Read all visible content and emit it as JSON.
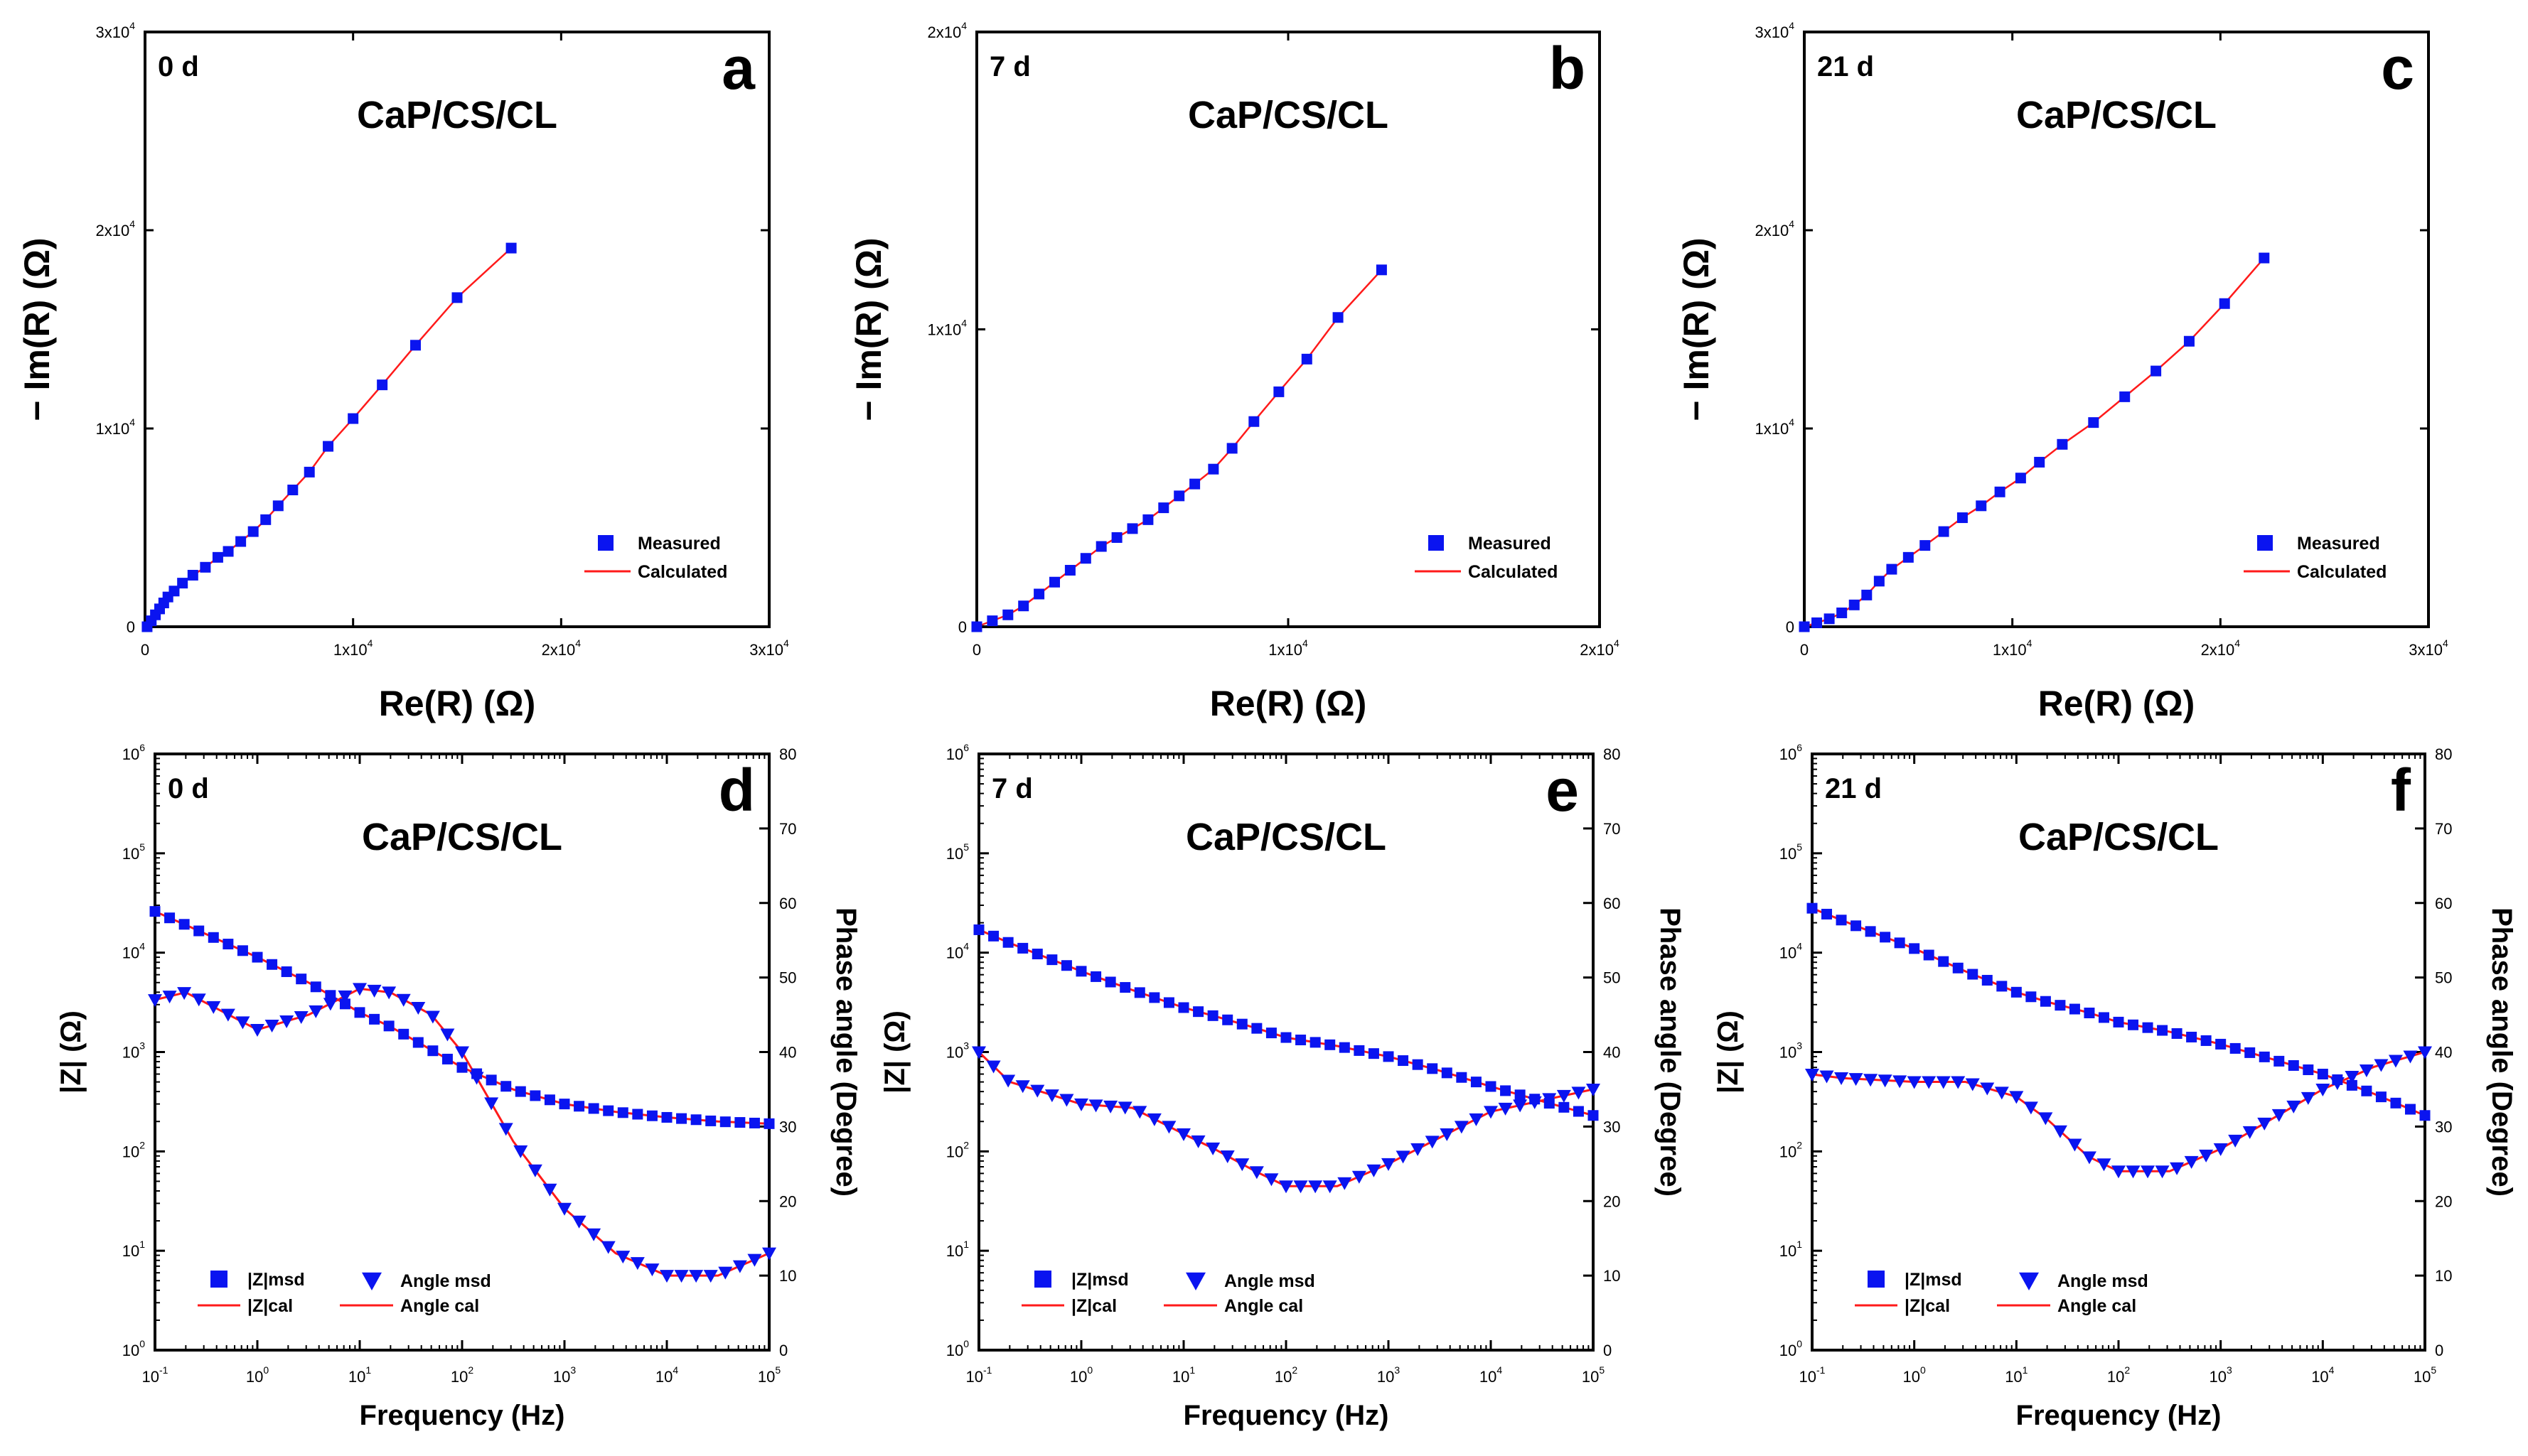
{
  "colors": {
    "measured": "#0a14f0",
    "calculated": "#ff1a1a",
    "axis": "#000000"
  },
  "chart_data": [
    {
      "id": "a",
      "type": "scatter",
      "panel_letter": "a",
      "day": "0 d",
      "title": "CaP/CS/CL",
      "xlabel": "Re(R) (Ω)",
      "ylabel": "− Im(R) (Ω)",
      "xlim": [
        0,
        30000
      ],
      "ylim": [
        0,
        30000
      ],
      "xticks": [
        {
          "v": 0,
          "m": "0",
          "e": ""
        },
        {
          "v": 10000,
          "m": "1x10",
          "e": "4"
        },
        {
          "v": 20000,
          "m": "2x10",
          "e": "4"
        },
        {
          "v": 30000,
          "m": "3x10",
          "e": "4"
        }
      ],
      "yticks": [
        {
          "v": 0,
          "m": "0",
          "e": ""
        },
        {
          "v": 10000,
          "m": "1x10",
          "e": "4"
        },
        {
          "v": 20000,
          "m": "2x10",
          "e": "4"
        },
        {
          "v": 30000,
          "m": "3x10",
          "e": "4"
        }
      ],
      "legend": [
        "Measured",
        "Calculated"
      ],
      "legend_position": "bottom-right",
      "points": [
        [
          100,
          0
        ],
        [
          300,
          300
        ],
        [
          500,
          600
        ],
        [
          700,
          900
        ],
        [
          900,
          1200
        ],
        [
          1100,
          1500
        ],
        [
          1400,
          1800
        ],
        [
          1800,
          2200
        ],
        [
          2300,
          2600
        ],
        [
          2900,
          3000
        ],
        [
          3500,
          3500
        ],
        [
          4000,
          3800
        ],
        [
          4600,
          4300
        ],
        [
          5200,
          4800
        ],
        [
          5800,
          5400
        ],
        [
          6400,
          6100
        ],
        [
          7100,
          6900
        ],
        [
          7900,
          7800
        ],
        [
          8800,
          9100
        ],
        [
          10000,
          10500
        ],
        [
          11400,
          12200
        ],
        [
          13000,
          14200
        ],
        [
          15000,
          16600
        ],
        [
          17600,
          19100
        ]
      ]
    },
    {
      "id": "b",
      "type": "scatter",
      "panel_letter": "b",
      "day": "7 d",
      "title": "CaP/CS/CL",
      "xlabel": "Re(R) (Ω)",
      "ylabel": "− Im(R) (Ω)",
      "xlim": [
        0,
        20000
      ],
      "ylim": [
        0,
        20000
      ],
      "xticks": [
        {
          "v": 0,
          "m": "0",
          "e": ""
        },
        {
          "v": 10000,
          "m": "1x10",
          "e": "4"
        },
        {
          "v": 20000,
          "m": "2x10",
          "e": "4"
        }
      ],
      "yticks": [
        {
          "v": 0,
          "m": "0",
          "e": ""
        },
        {
          "v": 10000,
          "m": "1x10",
          "e": "4"
        },
        {
          "v": 20000,
          "m": "2x10",
          "e": "4"
        }
      ],
      "legend": [
        "Measured",
        "Calculated"
      ],
      "legend_position": "bottom-right",
      "points": [
        [
          0,
          0
        ],
        [
          500,
          200
        ],
        [
          1000,
          400
        ],
        [
          1500,
          700
        ],
        [
          2000,
          1100
        ],
        [
          2500,
          1500
        ],
        [
          3000,
          1900
        ],
        [
          3500,
          2300
        ],
        [
          4000,
          2700
        ],
        [
          4500,
          3000
        ],
        [
          5000,
          3300
        ],
        [
          5500,
          3600
        ],
        [
          6000,
          4000
        ],
        [
          6500,
          4400
        ],
        [
          7000,
          4800
        ],
        [
          7600,
          5300
        ],
        [
          8200,
          6000
        ],
        [
          8900,
          6900
        ],
        [
          9700,
          7900
        ],
        [
          10600,
          9000
        ],
        [
          11600,
          10400
        ],
        [
          13000,
          12000
        ]
      ]
    },
    {
      "id": "c",
      "type": "scatter",
      "panel_letter": "c",
      "day": "21 d",
      "title": "CaP/CS/CL",
      "xlabel": "Re(R) (Ω)",
      "ylabel": "− Im(R) (Ω)",
      "xlim": [
        0,
        30000
      ],
      "ylim": [
        0,
        30000
      ],
      "xticks": [
        {
          "v": 0,
          "m": "0",
          "e": ""
        },
        {
          "v": 10000,
          "m": "1x10",
          "e": "4"
        },
        {
          "v": 20000,
          "m": "2x10",
          "e": "4"
        },
        {
          "v": 30000,
          "m": "3x10",
          "e": "4"
        }
      ],
      "yticks": [
        {
          "v": 0,
          "m": "0",
          "e": ""
        },
        {
          "v": 10000,
          "m": "1x10",
          "e": "4"
        },
        {
          "v": 20000,
          "m": "2x10",
          "e": "4"
        },
        {
          "v": 30000,
          "m": "3x10",
          "e": "4"
        }
      ],
      "legend": [
        "Measured",
        "Calculated"
      ],
      "legend_position": "bottom-right",
      "points": [
        [
          0,
          0
        ],
        [
          600,
          200
        ],
        [
          1200,
          400
        ],
        [
          1800,
          700
        ],
        [
          2400,
          1100
        ],
        [
          3000,
          1600
        ],
        [
          3600,
          2300
        ],
        [
          4200,
          2900
        ],
        [
          5000,
          3500
        ],
        [
          5800,
          4100
        ],
        [
          6700,
          4800
        ],
        [
          7600,
          5500
        ],
        [
          8500,
          6100
        ],
        [
          9400,
          6800
        ],
        [
          10400,
          7500
        ],
        [
          11300,
          8300
        ],
        [
          12400,
          9200
        ],
        [
          13900,
          10300
        ],
        [
          15400,
          11600
        ],
        [
          16900,
          12900
        ],
        [
          18500,
          14400
        ],
        [
          20200,
          16300
        ],
        [
          22100,
          18600
        ]
      ]
    },
    {
      "id": "d",
      "type": "line",
      "panel_letter": "d",
      "day": "0 d",
      "title": "CaP/CS/CL",
      "xlabel": "Frequency (Hz)",
      "ylabel": "|Z| (Ω)",
      "y2label": "Phase angle (Degree)",
      "xlim_log10": [
        -1,
        5
      ],
      "ylim_log10": [
        0,
        6
      ],
      "y2lim": [
        0,
        80
      ],
      "y2ticks": [
        0,
        10,
        20,
        30,
        40,
        50,
        60,
        70,
        80
      ],
      "legend": [
        "|Z|msd",
        "|Z|cal",
        "Angle msd",
        "Angle cal"
      ],
      "legend_position": "bottom-left",
      "logf": [
        -1,
        -0.7,
        0,
        0.5,
        1,
        1.3,
        1.7,
        2,
        2.5,
        3,
        3.5,
        4,
        4.5,
        5
      ],
      "Z": [
        26000,
        19000,
        9000,
        5000,
        2500,
        1800,
        1050,
        700,
        420,
        300,
        250,
        220,
        200,
        190
      ],
      "phase": [
        47,
        48,
        43,
        45,
        48.5,
        48,
        45,
        40,
        28,
        19,
        13,
        10,
        10,
        13
      ]
    },
    {
      "id": "e",
      "type": "line",
      "panel_letter": "e",
      "day": "7 d",
      "title": "CaP/CS/CL",
      "xlabel": "Frequency (Hz)",
      "ylabel": "|Z| (Ω)",
      "y2label": "Phase angle (Degree)",
      "xlim_log10": [
        -1,
        5
      ],
      "ylim_log10": [
        0,
        6
      ],
      "y2lim": [
        0,
        80
      ],
      "y2ticks": [
        0,
        10,
        20,
        30,
        40,
        50,
        60,
        70,
        80
      ],
      "legend": [
        "|Z|msd",
        "|Z|cal",
        "Angle msd",
        "Angle cal"
      ],
      "legend_position": "bottom-left",
      "logf": [
        -1,
        -0.7,
        0,
        0.5,
        1,
        1.3,
        1.7,
        2,
        2.5,
        3,
        3.5,
        4,
        4.5,
        5
      ],
      "Z": [
        17000,
        12500,
        6500,
        4200,
        2800,
        2300,
        1750,
        1400,
        1150,
        900,
        650,
        450,
        320,
        230
      ],
      "phase": [
        40,
        36,
        33,
        32.5,
        29,
        27,
        24,
        22,
        22,
        25,
        28.5,
        32,
        33.5,
        35
      ]
    },
    {
      "id": "f",
      "type": "line",
      "panel_letter": "f",
      "day": "21 d",
      "title": "CaP/CS/CL",
      "xlabel": "Frequency (Hz)",
      "ylabel": "|Z| (Ω)",
      "y2label": "Phase angle (Degree)",
      "xlim_log10": [
        -1,
        5
      ],
      "ylim_log10": [
        0,
        6
      ],
      "y2lim": [
        0,
        80
      ],
      "y2ticks": [
        0,
        10,
        20,
        30,
        40,
        50,
        60,
        70,
        80
      ],
      "legend": [
        "|Z|msd",
        "|Z|cal",
        "Angle msd",
        "Angle cal"
      ],
      "legend_position": "bottom-left",
      "logf": [
        -1,
        -0.7,
        0,
        0.5,
        1,
        1.3,
        1.7,
        2,
        2.5,
        3,
        3.5,
        4,
        4.5,
        5
      ],
      "Z": [
        28000,
        21000,
        11000,
        6500,
        4000,
        3200,
        2500,
        2000,
        1600,
        1200,
        850,
        600,
        380,
        230
      ],
      "phase": [
        37,
        36.5,
        36,
        36,
        34,
        31,
        26,
        24,
        24,
        27,
        31,
        35,
        38,
        40
      ]
    }
  ]
}
